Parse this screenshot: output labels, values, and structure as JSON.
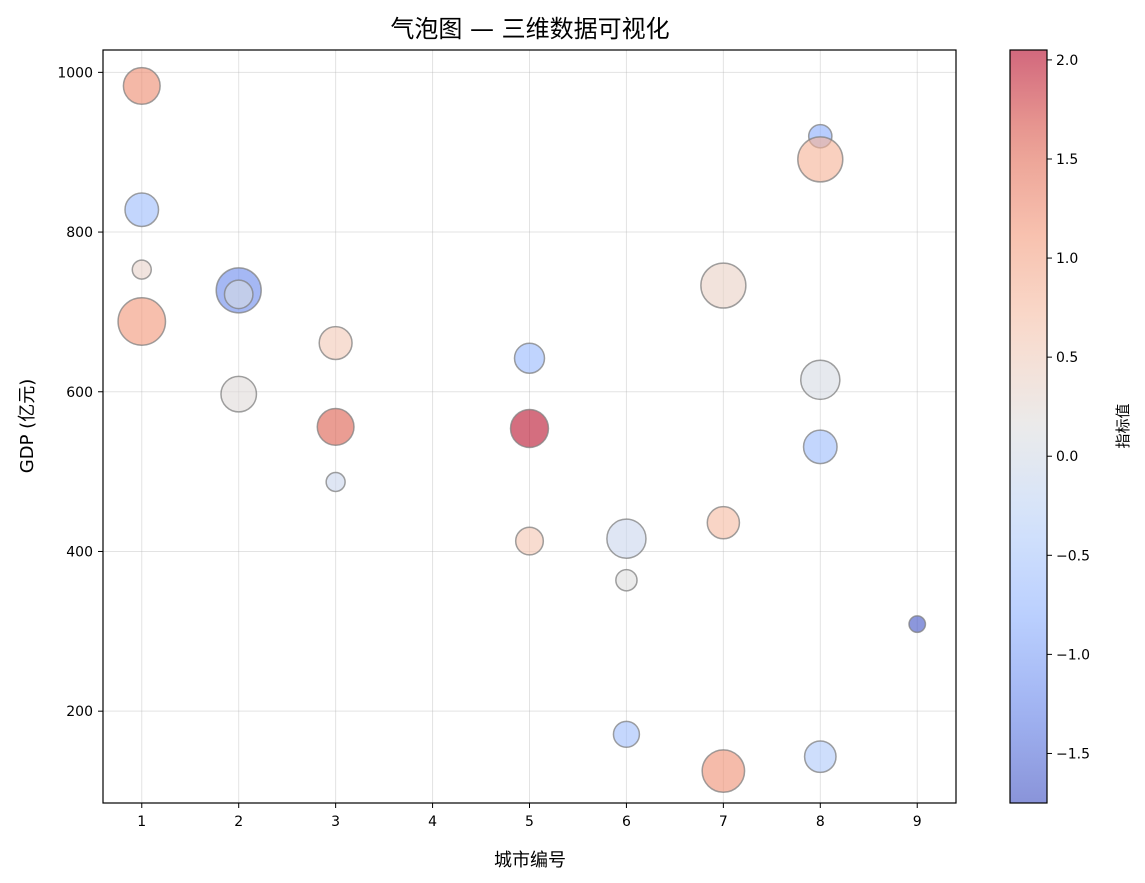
{
  "chart_data": {
    "type": "scatter",
    "subtype": "bubble",
    "title": "气泡图 — 三维数据可视化",
    "xlabel": "城市编号",
    "ylabel": "GDP (亿元)",
    "xlim": [
      0.6,
      9.4
    ],
    "ylim": [
      85,
      1028
    ],
    "xticks": [
      1,
      2,
      3,
      4,
      5,
      6,
      7,
      8,
      9
    ],
    "yticks": [
      200,
      400,
      600,
      800,
      1000
    ],
    "grid": true,
    "colormap": "coolwarm",
    "colorbar": {
      "label": "指标值",
      "range": [
        -1.75,
        2.05
      ],
      "ticks": [
        -1.5,
        -1.0,
        -0.5,
        0.0,
        0.5,
        1.0,
        1.5,
        2.0
      ],
      "tick_labels": [
        "−1.5",
        "−1.0",
        "−0.5",
        "0.0",
        "0.5",
        "1.0",
        "1.5",
        "2.0"
      ]
    },
    "points": [
      {
        "x": 1,
        "y": 983,
        "size": 300,
        "value": 1.25
      },
      {
        "x": 1,
        "y": 828,
        "size": 250,
        "value": -0.65
      },
      {
        "x": 1,
        "y": 753,
        "size": 80,
        "value": 0.35
      },
      {
        "x": 1,
        "y": 688,
        "size": 500,
        "value": 1.15
      },
      {
        "x": 2,
        "y": 727,
        "size": 450,
        "value": -1.2
      },
      {
        "x": 2,
        "y": 722,
        "size": 180,
        "value": 0.05
      },
      {
        "x": 2,
        "y": 597,
        "size": 280,
        "value": 0.2
      },
      {
        "x": 3,
        "y": 661,
        "size": 240,
        "value": 0.55
      },
      {
        "x": 3,
        "y": 556,
        "size": 300,
        "value": 1.6
      },
      {
        "x": 3,
        "y": 487,
        "size": 80,
        "value": -0.1
      },
      {
        "x": 5,
        "y": 642,
        "size": 200,
        "value": -0.7
      },
      {
        "x": 5,
        "y": 554,
        "size": 320,
        "value": 2.0
      },
      {
        "x": 5,
        "y": 413,
        "size": 170,
        "value": 0.6
      },
      {
        "x": 6,
        "y": 416,
        "size": 340,
        "value": -0.1
      },
      {
        "x": 6,
        "y": 364,
        "size": 100,
        "value": 0.15
      },
      {
        "x": 6,
        "y": 171,
        "size": 150,
        "value": -0.6
      },
      {
        "x": 7,
        "y": 733,
        "size": 450,
        "value": 0.4
      },
      {
        "x": 7,
        "y": 436,
        "size": 230,
        "value": 0.75
      },
      {
        "x": 7,
        "y": 125,
        "size": 400,
        "value": 1.2
      },
      {
        "x": 8,
        "y": 920,
        "size": 120,
        "value": -0.85
      },
      {
        "x": 8,
        "y": 891,
        "size": 450,
        "value": 0.85
      },
      {
        "x": 8,
        "y": 615,
        "size": 340,
        "value": 0.05
      },
      {
        "x": 8,
        "y": 531,
        "size": 250,
        "value": -0.65
      },
      {
        "x": 8,
        "y": 143,
        "size": 220,
        "value": -0.45
      },
      {
        "x": 9,
        "y": 309,
        "size": 60,
        "value": -1.7
      }
    ]
  }
}
